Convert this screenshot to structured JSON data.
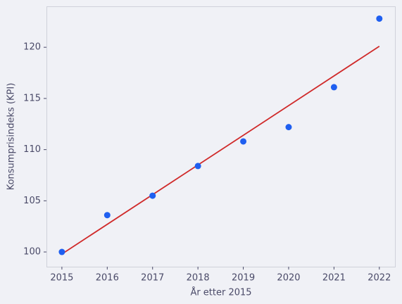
{
  "chart_data": {
    "type": "scatter",
    "x_label": "År etter 2015",
    "y_label": "Konsumprisindeks (KPI)",
    "x": [
      2015,
      2016,
      2017,
      2018,
      2019,
      2020,
      2021,
      2022
    ],
    "series": [
      {
        "type": "scatter",
        "color": "#1f5ff0",
        "values": [
          100,
          103.6,
          105.5,
          108.4,
          110.8,
          112.2,
          116.1,
          122.8
        ]
      },
      {
        "type": "line",
        "color": "#d02a2a",
        "x": [
          2015,
          2022
        ],
        "values": [
          99.8,
          120.1
        ]
      }
    ],
    "xlim": [
      2014.66,
      2022.36
    ],
    "ylim": [
      98.56,
      124
    ],
    "xticks": [
      2015,
      2016,
      2017,
      2018,
      2019,
      2020,
      2021,
      2022
    ],
    "yticks": [
      100,
      105,
      110,
      115,
      120
    ]
  }
}
